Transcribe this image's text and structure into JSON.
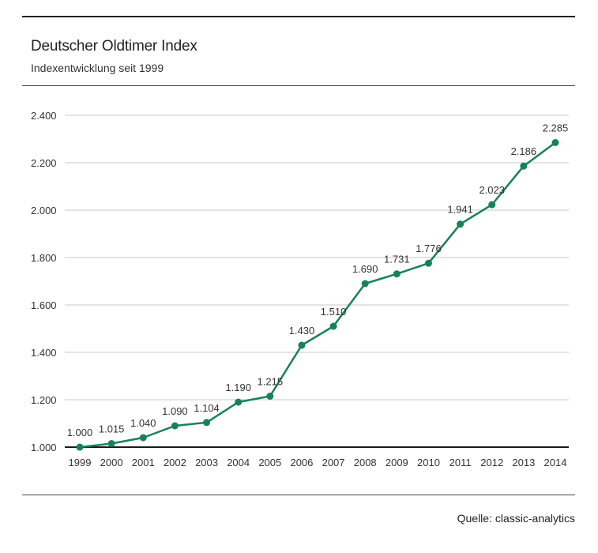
{
  "header": {
    "title": "Deutscher Oldtimer Index",
    "subtitle": "Indexentwicklung seit 1999"
  },
  "footer": {
    "source": "Quelle: classic-analytics"
  },
  "colors": {
    "series": "#17825a",
    "grid": "#c8c8c8",
    "baseline": "#1a1a1a"
  },
  "chart_data": {
    "type": "line",
    "title": "Deutscher Oldtimer Index",
    "subtitle": "Indexentwicklung seit 1999",
    "xlabel": "",
    "ylabel": "",
    "x": [
      "1999",
      "2000",
      "2001",
      "2002",
      "2003",
      "2004",
      "2005",
      "2006",
      "2007",
      "2008",
      "2009",
      "2010",
      "2011",
      "2012",
      "2013",
      "2014"
    ],
    "series": [
      {
        "name": "Deutscher Oldtimer Index",
        "values": [
          1000,
          1015,
          1040,
          1090,
          1104,
          1190,
          1215,
          1430,
          1510,
          1690,
          1731,
          1776,
          1941,
          2023,
          2186,
          2285
        ],
        "labels": [
          "1.000",
          "1.015",
          "1.040",
          "1.090",
          "1.104",
          "1.190",
          "1.215",
          "1.430",
          "1.510",
          "1.690",
          "1.731",
          "1.776",
          "1.941",
          "2.023",
          "2.186",
          "2.285"
        ]
      }
    ],
    "ylim": [
      1000,
      2400
    ],
    "yticks": [
      1000,
      1200,
      1400,
      1600,
      1800,
      2000,
      2200,
      2400
    ],
    "ytick_labels": [
      "1.000",
      "1.200",
      "1.400",
      "1.600",
      "1.800",
      "2.000",
      "2.200",
      "2.400"
    ],
    "grid": true,
    "legend": "none",
    "source": "Quelle: classic-analytics"
  }
}
